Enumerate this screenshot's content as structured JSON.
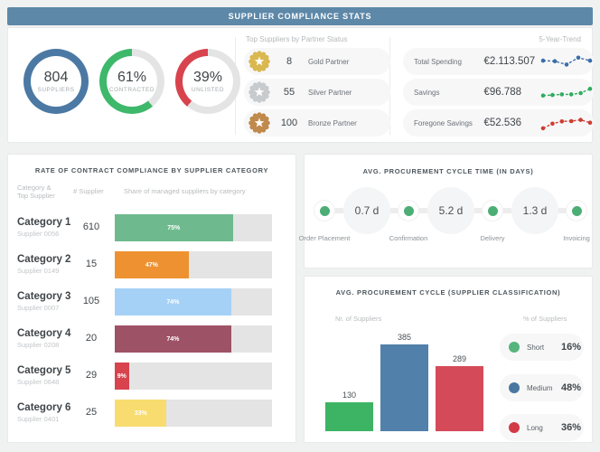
{
  "theme": {
    "track": "#e4e4e5",
    "header_bg": "#5d88a8"
  },
  "header": {
    "title": "SUPPLIER COMPLIANCE STATS"
  },
  "kpis": {
    "donuts": [
      {
        "value": "804",
        "label": "SUPPLIERS",
        "percent": 100,
        "color": "#4b79a3"
      },
      {
        "value": "61%",
        "label": "CONTRACTED",
        "percent": 61,
        "color": "#3eb86b"
      },
      {
        "value": "39%",
        "label": "UNLISTED",
        "percent": 39,
        "color": "#d8434e"
      }
    ],
    "partners": {
      "title": "Top Suppliers by Partner Status",
      "items": [
        {
          "count": "8",
          "label": "Gold Partner",
          "badge": "gold-badge",
          "color": "#d9b850"
        },
        {
          "count": "55",
          "label": "Silver Partner",
          "badge": "silver-badge",
          "color": "#c7cbce"
        },
        {
          "count": "100",
          "label": "Bronze Partner",
          "badge": "bronze-badge",
          "color": "#c08a4c"
        }
      ]
    },
    "trends": {
      "title": "5-Year-Trend",
      "items": [
        {
          "label": "Total Spending",
          "value": "€2.113.507",
          "color": "#3a6ea8",
          "points": [
            55,
            52,
            30,
            75,
            55
          ]
        },
        {
          "label": "Savings",
          "value": "€96.788",
          "color": "#2fae5f",
          "points": [
            28,
            32,
            36,
            36,
            44,
            72
          ]
        },
        {
          "label": "Foregone Savings",
          "value": "€52.536",
          "color": "#cf3c31",
          "points": [
            15,
            45,
            60,
            62,
            70,
            52
          ]
        }
      ]
    }
  },
  "compliance": {
    "title": "RATE OF CONTRACT COMPLIANCE BY SUPPLIER CATEGORY",
    "col_category_l1": "Category &",
    "col_category_l2": "Top Supplier",
    "col_count": "# Supplier",
    "col_share": "Share of managed suppliers by category",
    "rows": [
      {
        "category": "Category 1",
        "supplier": "Supplier 0056",
        "count": "610",
        "percent": 75,
        "label": "75%",
        "color": "#6eba8e"
      },
      {
        "category": "Category 2",
        "supplier": "Supplier 0149",
        "count": "15",
        "percent": 47,
        "label": "47%",
        "color": "#ee9231"
      },
      {
        "category": "Category 3",
        "supplier": "Supplier 0007",
        "count": "105",
        "percent": 74,
        "label": "74%",
        "color": "#a5d1f7"
      },
      {
        "category": "Category 4",
        "supplier": "Supplier 0208",
        "count": "20",
        "percent": 74,
        "label": "74%",
        "color": "#9e5266"
      },
      {
        "category": "Category 5",
        "supplier": "Supplier 0648",
        "count": "29",
        "percent": 9,
        "label": "9%",
        "color": "#d8434e"
      },
      {
        "category": "Category 6",
        "supplier": "Supplier 0401",
        "count": "25",
        "percent": 33,
        "label": "33%",
        "color": "#f8dc6f"
      }
    ]
  },
  "cycle_time": {
    "title": "AVG. PROCUREMENT CYCLE TIME (IN DAYS)",
    "stages": [
      "Order Placement",
      "Confirmation",
      "Delivery",
      "Invoicing"
    ],
    "durations": [
      "0.7 d",
      "5.2 d",
      "1.3 d"
    ],
    "dot_color": "#4cae74"
  },
  "classification": {
    "title": "AVG. PROCUREMENT CYCLE (SUPPLIER CLASSIFICATION)",
    "left_axis": "Nr. of Suppliers",
    "right_axis": "% of Suppliers",
    "chart": {
      "values": [
        130,
        385,
        289
      ],
      "value_labels": [
        "130",
        "385",
        "289"
      ],
      "colors": [
        "#3db463",
        "#5181aa",
        "#d54a58"
      ]
    },
    "legend": [
      {
        "label": "Short",
        "percent": "16%",
        "color": "#56b47d"
      },
      {
        "label": "Medium",
        "percent": "48%",
        "color": "#4a77a0"
      },
      {
        "label": "Long",
        "percent": "36%",
        "color": "#d23a46"
      }
    ]
  },
  "chart_data": [
    {
      "type": "pie",
      "title": "Suppliers",
      "center_text": "804",
      "label": "SUPPLIERS",
      "slices": [
        {
          "label": "SUPPLIERS",
          "value": 100
        }
      ]
    },
    {
      "type": "pie",
      "title": "Contracted",
      "center_text": "61%",
      "slices": [
        {
          "label": "CONTRACTED",
          "value": 61
        },
        {
          "label": "rest",
          "value": 39
        }
      ]
    },
    {
      "type": "pie",
      "title": "Unlisted",
      "center_text": "39%",
      "slices": [
        {
          "label": "UNLISTED",
          "value": 39
        },
        {
          "label": "rest",
          "value": 61
        }
      ]
    },
    {
      "type": "line",
      "title": "5-Year-Trend",
      "series": [
        {
          "name": "Total Spending",
          "current": "€2.113.507",
          "values": [
            55,
            52,
            30,
            75,
            55
          ]
        },
        {
          "name": "Savings",
          "current": "€96.788",
          "values": [
            28,
            32,
            36,
            36,
            44,
            72
          ]
        },
        {
          "name": "Foregone Savings",
          "current": "€52.536",
          "values": [
            15,
            45,
            60,
            62,
            70,
            52
          ]
        }
      ]
    },
    {
      "type": "bar",
      "title": "Rate of Contract Compliance by Supplier Category",
      "categories": [
        "Category 1",
        "Category 2",
        "Category 3",
        "Category 4",
        "Category 5",
        "Category 6"
      ],
      "series": [
        {
          "name": "# Supplier",
          "values": [
            610,
            15,
            105,
            20,
            29,
            25
          ]
        },
        {
          "name": "Share of managed suppliers by category (%)",
          "values": [
            75,
            47,
            74,
            74,
            9,
            33
          ]
        }
      ]
    },
    {
      "type": "table",
      "title": "Avg. Procurement Cycle Time (in days)",
      "stages": [
        "Order Placement",
        "Confirmation",
        "Delivery",
        "Invoicing"
      ],
      "durations_days": [
        0.7,
        5.2,
        1.3
      ]
    },
    {
      "type": "bar",
      "title": "Avg. Procurement Cycle (Supplier Classification)",
      "categories": [
        "Short",
        "Medium",
        "Long"
      ],
      "values": [
        130,
        385,
        289
      ],
      "percent_of_suppliers": [
        "16%",
        "48%",
        "36%"
      ],
      "xlabel": "",
      "ylabel": "Nr. of Suppliers"
    }
  ]
}
